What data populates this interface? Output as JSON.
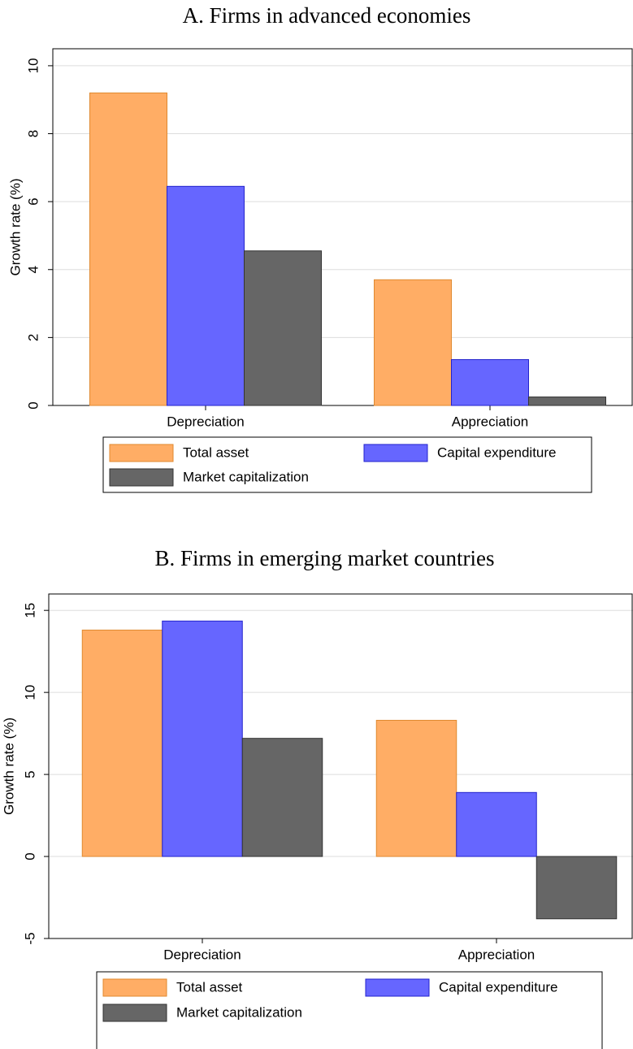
{
  "chart_data": [
    {
      "type": "bar",
      "title": "A. Firms in advanced economies",
      "y_label": "Growth rate (%)",
      "categories": [
        "Depreciation",
        "Appreciation"
      ],
      "series": [
        {
          "name": "Total asset",
          "color": "#FFAD65",
          "values": [
            9.2,
            3.7
          ]
        },
        {
          "name": "Capital expenditure",
          "color": "#6666FF",
          "values": [
            6.45,
            1.35
          ]
        },
        {
          "name": "Market capitalization",
          "color": "#666666",
          "values": [
            4.55,
            0.25
          ]
        }
      ],
      "ylim": [
        0,
        10.5
      ],
      "yticks": [
        0,
        2,
        4,
        6,
        8,
        10
      ],
      "grid": true
    },
    {
      "type": "bar",
      "title": "B. Firms in emerging market countries",
      "y_label": "Growth rate (%)",
      "categories": [
        "Depreciation",
        "Appreciation"
      ],
      "series": [
        {
          "name": "Total asset",
          "color": "#FFAD65",
          "values": [
            13.8,
            8.3
          ]
        },
        {
          "name": "Capital expenditure",
          "color": "#6666FF",
          "values": [
            14.35,
            3.9
          ]
        },
        {
          "name": "Market capitalization",
          "color": "#666666",
          "values": [
            7.2,
            -3.8
          ]
        }
      ],
      "ylim": [
        -5,
        16
      ],
      "yticks": [
        -5,
        0,
        5,
        10,
        15
      ],
      "grid": true
    }
  ]
}
